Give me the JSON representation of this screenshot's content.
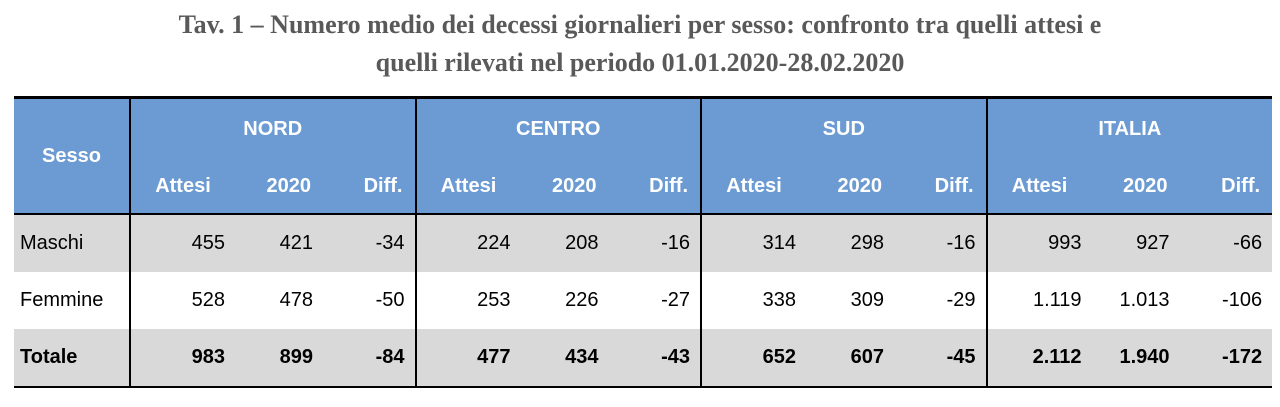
{
  "title": {
    "line1": "Tav. 1 – Numero medio dei decessi giornalieri per sesso: confronto tra quelli attesi e",
    "line2": "quelli rilevati nel periodo 01.01.2020-28.02.2020"
  },
  "table": {
    "sesso_header": "Sesso",
    "regions": [
      "NORD",
      "CENTRO",
      "SUD",
      "ITALIA"
    ],
    "subheaders": [
      "Attesi",
      "2020",
      "Diff."
    ],
    "rows": [
      {
        "label": "Maschi",
        "values": [
          "455",
          "421",
          "-34",
          "224",
          "208",
          "-16",
          "314",
          "298",
          "-16",
          "993",
          "927",
          "-66"
        ]
      },
      {
        "label": "Femmine",
        "values": [
          "528",
          "478",
          "-50",
          "253",
          "226",
          "-27",
          "338",
          "309",
          "-29",
          "1.119",
          "1.013",
          "-106"
        ]
      },
      {
        "label": "Totale",
        "values": [
          "983",
          "899",
          "-84",
          "477",
          "434",
          "-43",
          "652",
          "607",
          "-45",
          "2.112",
          "1.940",
          "-172"
        ]
      }
    ]
  },
  "colors": {
    "header_bg": "#6b9bd2",
    "header_text": "#ffffff",
    "shade_row": "#d9d9d9",
    "title_text": "#595959"
  }
}
